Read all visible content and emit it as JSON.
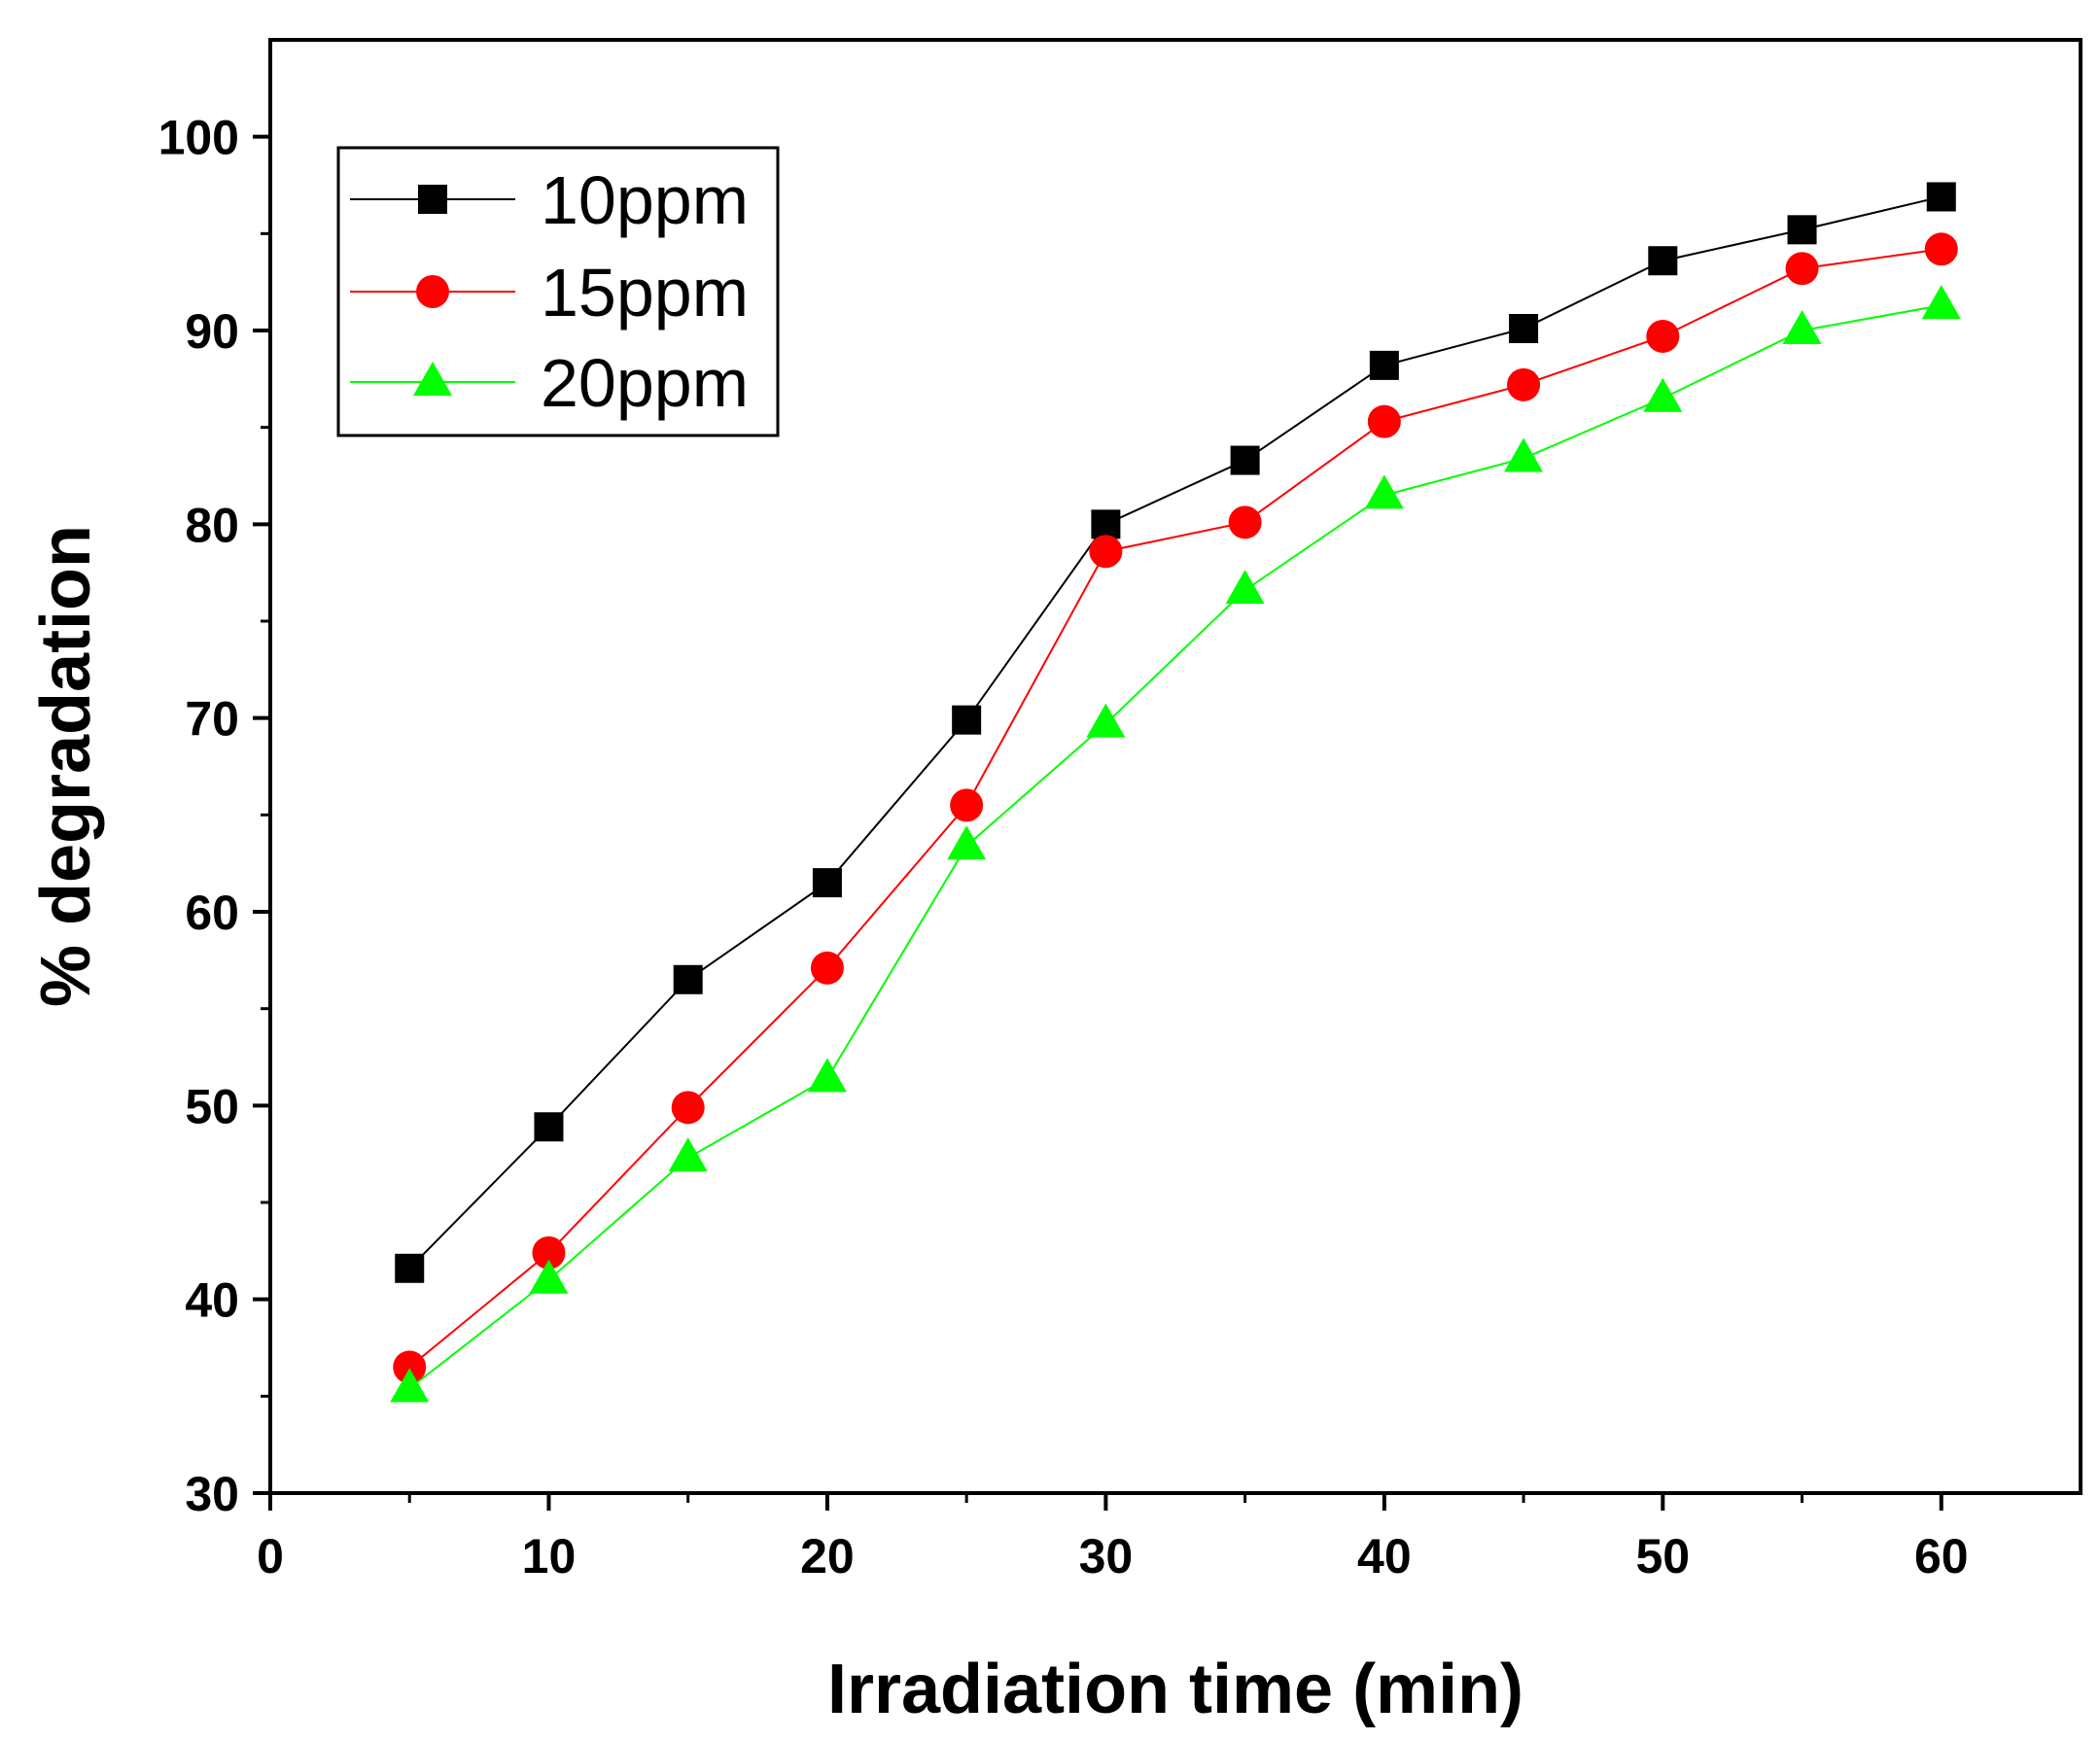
{
  "chart_data": {
    "type": "line",
    "title": "",
    "xlabel": "Irradiation time (min)",
    "ylabel": "% degradation",
    "xlim": [
      0,
      65
    ],
    "ylim": [
      30,
      105
    ],
    "x_ticks": [
      0,
      10,
      20,
      30,
      40,
      50,
      60
    ],
    "x_tick_labels": [
      "0",
      "10",
      "20",
      "30",
      "40",
      "50",
      "60"
    ],
    "y_ticks": [
      30,
      40,
      50,
      60,
      70,
      80,
      90,
      100
    ],
    "y_tick_labels": [
      "30",
      "40",
      "50",
      "60",
      "70",
      "80",
      "90",
      "100"
    ],
    "grid": false,
    "legend_position": "top-left",
    "x": [
      5,
      10,
      15,
      20,
      25,
      30,
      35,
      40,
      45,
      50,
      55,
      60
    ],
    "series": [
      {
        "name": "10ppm",
        "color": "#000000",
        "marker": "square",
        "values": [
          41.6,
          48.9,
          56.5,
          61.5,
          69.9,
          80.0,
          83.3,
          88.2,
          90.1,
          93.6,
          95.2,
          96.9
        ]
      },
      {
        "name": "15ppm",
        "color": "#ff0000",
        "marker": "circle",
        "values": [
          36.5,
          42.4,
          49.9,
          57.1,
          65.5,
          78.6,
          80.1,
          85.3,
          87.2,
          89.7,
          93.2,
          94.2
        ]
      },
      {
        "name": "20ppm",
        "color": "#00ff00",
        "marker": "triangle",
        "values": [
          35.4,
          41.0,
          47.3,
          51.4,
          63.4,
          69.7,
          76.6,
          81.5,
          83.4,
          86.5,
          90.0,
          91.3
        ]
      }
    ]
  }
}
